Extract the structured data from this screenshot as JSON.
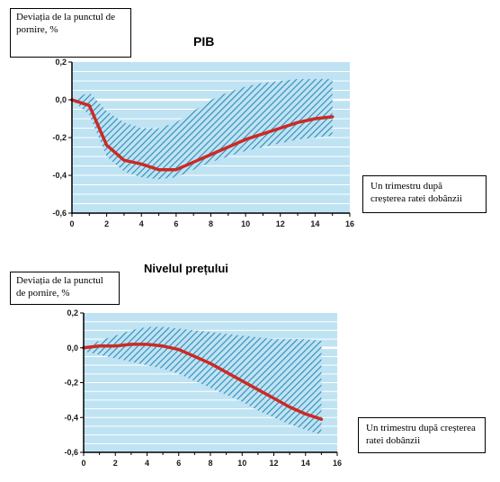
{
  "chart_data": [
    {
      "type": "line",
      "title": "PIB",
      "ylabel": "Deviația de la punctul de pornire, %",
      "xlabel": "Un trimestru după creșterea ratei dobânzii",
      "xlim": [
        0,
        16
      ],
      "ylim": [
        -0.6,
        0.2
      ],
      "x_ticks": [
        "0",
        "2",
        "4",
        "6",
        "8",
        "10",
        "12",
        "14",
        "16"
      ],
      "y_ticks": [
        "0,2",
        "0,0",
        "-0,2",
        "-0,4",
        "-0,6"
      ],
      "series": [
        {
          "x": [
            0,
            1,
            2,
            3,
            4,
            5,
            6,
            7,
            8,
            9,
            10,
            11,
            12,
            13,
            14,
            15
          ],
          "values": [
            0.0,
            -0.03,
            -0.24,
            -0.32,
            -0.34,
            -0.37,
            -0.37,
            -0.33,
            -0.29,
            -0.25,
            -0.21,
            -0.18,
            -0.15,
            -0.12,
            -0.1,
            -0.09
          ]
        }
      ],
      "band_upper": [
        0.0,
        0.04,
        -0.06,
        -0.12,
        -0.15,
        -0.15,
        -0.12,
        -0.06,
        0.0,
        0.04,
        0.07,
        0.09,
        0.1,
        0.11,
        0.11,
        0.11
      ],
      "band_lower": [
        0.0,
        -0.08,
        -0.3,
        -0.38,
        -0.41,
        -0.42,
        -0.41,
        -0.37,
        -0.33,
        -0.3,
        -0.27,
        -0.25,
        -0.23,
        -0.21,
        -0.2,
        -0.19
      ],
      "colors": {
        "line": "#cc2a24",
        "band": "#2e8bb8",
        "background": "#bfe3f3",
        "grid": "#ffffff"
      }
    },
    {
      "type": "line",
      "title": "Nivelul prețului",
      "ylabel": "Deviația de la punctul de pornire, %",
      "xlabel": "Un trimestru după creșterea ratei dobânzii",
      "xlim": [
        0,
        16
      ],
      "ylim": [
        -0.6,
        0.2
      ],
      "x_ticks": [
        "0",
        "2",
        "4",
        "6",
        "8",
        "10",
        "12",
        "14",
        "16"
      ],
      "y_ticks": [
        "0,2",
        "0,0",
        "-0,2",
        "-0,4",
        "-0,6"
      ],
      "series": [
        {
          "x": [
            0,
            1,
            2,
            3,
            4,
            5,
            6,
            7,
            8,
            9,
            10,
            11,
            12,
            13,
            14,
            15
          ],
          "values": [
            0.0,
            0.01,
            0.01,
            0.02,
            0.02,
            0.01,
            -0.01,
            -0.05,
            -0.09,
            -0.14,
            -0.19,
            -0.24,
            -0.29,
            -0.34,
            -0.38,
            -0.41
          ]
        }
      ],
      "band_upper": [
        0.0,
        0.04,
        0.07,
        0.1,
        0.12,
        0.12,
        0.11,
        0.1,
        0.09,
        0.08,
        0.07,
        0.06,
        0.05,
        0.05,
        0.05,
        0.04
      ],
      "band_lower": [
        -0.02,
        -0.04,
        -0.06,
        -0.08,
        -0.1,
        -0.12,
        -0.15,
        -0.19,
        -0.23,
        -0.27,
        -0.31,
        -0.36,
        -0.4,
        -0.44,
        -0.47,
        -0.5
      ],
      "colors": {
        "line": "#cc2a24",
        "band": "#2e8bb8",
        "background": "#bfe3f3",
        "grid": "#ffffff"
      }
    }
  ]
}
